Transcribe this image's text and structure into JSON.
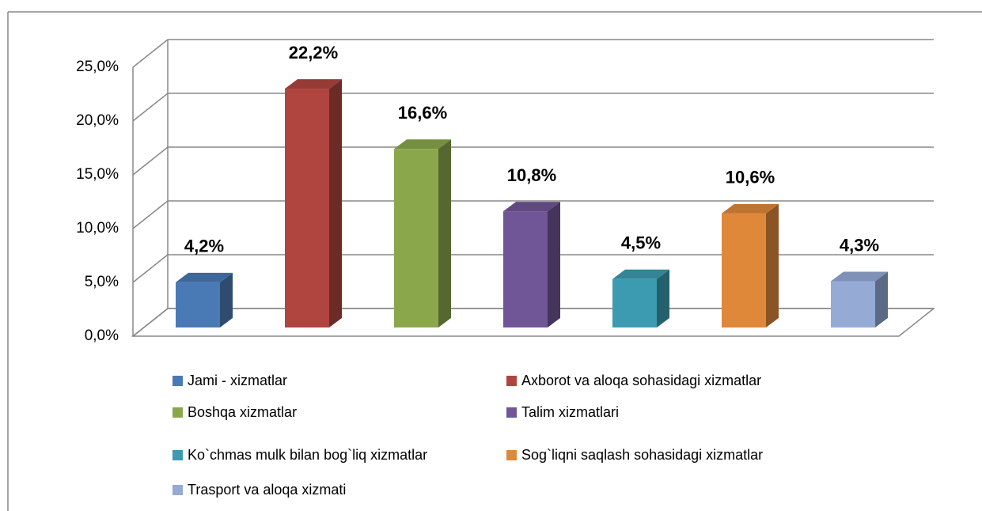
{
  "chart_data": {
    "type": "bar3d",
    "categories": [
      "Jami - xizmatlar",
      "Axborot va aloqa sohasidagi xizmatlar",
      "Boshqa xizmatlar",
      "Talim xizmatlari",
      "Ko`chmas mulk bilan bog`liq xizmatlar",
      "Sog`liqni saqlash sohasidagi xizmatlar",
      "Trasport va aloqa xizmati"
    ],
    "values": [
      4.2,
      22.2,
      16.6,
      10.8,
      4.5,
      10.6,
      4.3
    ],
    "value_labels": [
      "4,2%",
      "22,2%",
      "16,6%",
      "10,8%",
      "4,5%",
      "10,6%",
      "4,3%"
    ],
    "colors": [
      "#4a7ab5",
      "#b0453f",
      "#8aa84b",
      "#705696",
      "#3c9bb0",
      "#e0883a",
      "#95abd6"
    ],
    "ylim": [
      0,
      25
    ],
    "yticks": [
      {
        "value": 0,
        "label": "0,0%"
      },
      {
        "value": 5,
        "label": "5,0%"
      },
      {
        "value": 10,
        "label": "10,0%"
      },
      {
        "value": 15,
        "label": "15,0%"
      },
      {
        "value": 20,
        "label": "20,0%"
      },
      {
        "value": 25,
        "label": "25,0%"
      }
    ],
    "grid": true
  }
}
